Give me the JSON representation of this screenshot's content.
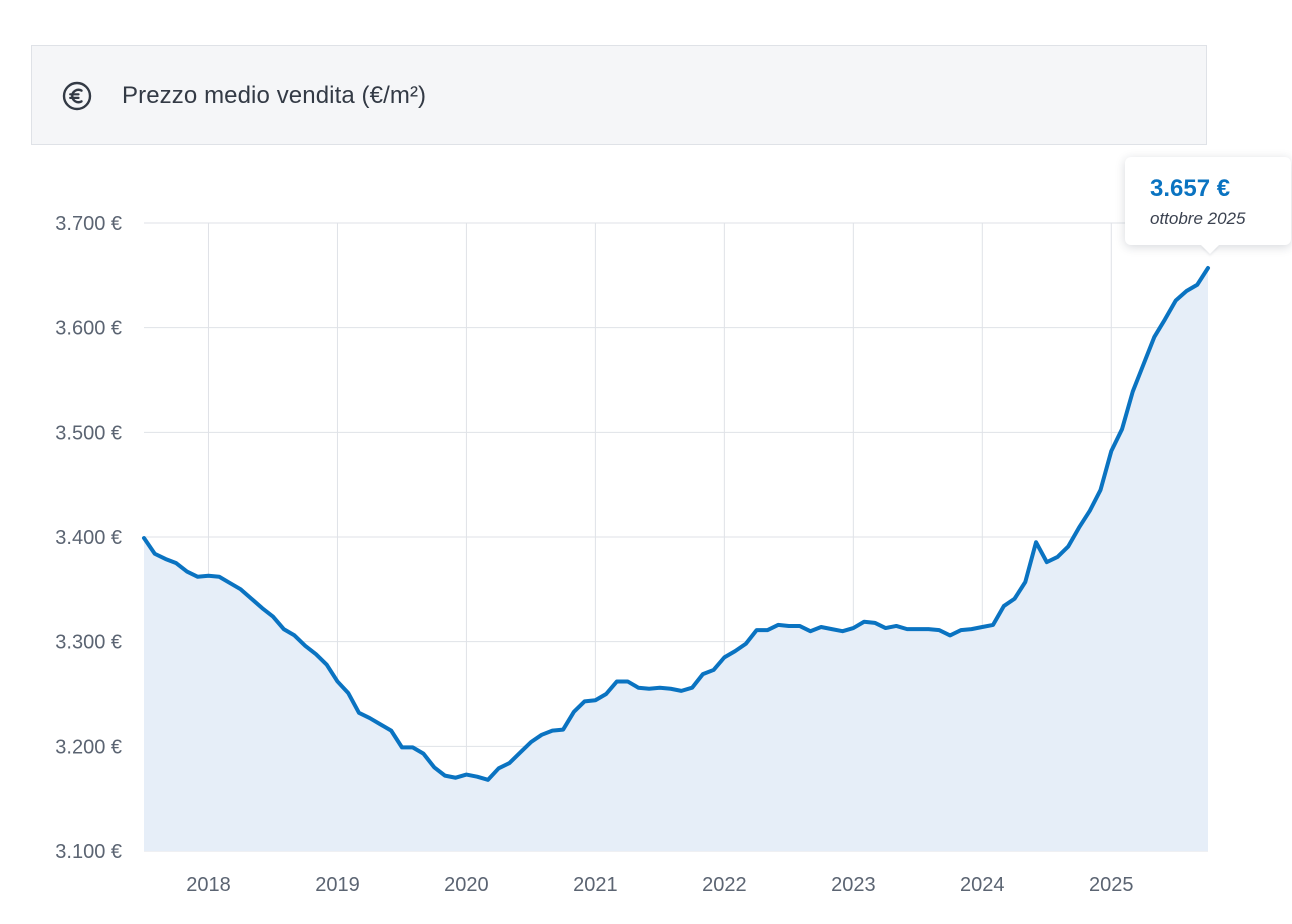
{
  "header": {
    "title": "Prezzo medio vendita (€/m²)",
    "icon": "euro-icon"
  },
  "tooltip": {
    "value": "3.657 €",
    "date": "ottobre 2025"
  },
  "colors": {
    "line": "#0a73c1",
    "area": "#e6eef8",
    "grid": "#dfe2e7",
    "tooltip_value": "#0a73c1"
  },
  "chart_data": {
    "type": "area",
    "title": "Prezzo medio vendita (€/m²)",
    "xlabel": "",
    "ylabel": "",
    "ylim": [
      3100,
      3700
    ],
    "xlim": [
      "2017-07",
      "2025-10"
    ],
    "grid": true,
    "y_ticks": [
      3100,
      3200,
      3300,
      3400,
      3500,
      3600,
      3700
    ],
    "y_tick_labels": [
      "3.100 €",
      "3.200 €",
      "3.300 €",
      "3.400 €",
      "3.500 €",
      "3.600 €",
      "3.700 €"
    ],
    "x_ticks": [
      "2018-01",
      "2019-01",
      "2020-01",
      "2021-01",
      "2022-01",
      "2023-01",
      "2024-01",
      "2025-01"
    ],
    "x_tick_labels": [
      "2018",
      "2019",
      "2020",
      "2021",
      "2022",
      "2023",
      "2024",
      "2025"
    ],
    "series": [
      {
        "x": [
          "2017-07",
          "2017-08",
          "2017-09",
          "2017-10",
          "2017-11",
          "2017-12",
          "2018-01",
          "2018-02",
          "2018-03",
          "2018-04",
          "2018-05",
          "2018-06",
          "2018-07",
          "2018-08",
          "2018-09",
          "2018-10",
          "2018-11",
          "2018-12",
          "2019-01",
          "2019-02",
          "2019-03",
          "2019-04",
          "2019-05",
          "2019-06",
          "2019-07",
          "2019-08",
          "2019-09",
          "2019-10",
          "2019-11",
          "2019-12",
          "2020-01",
          "2020-02",
          "2020-03",
          "2020-04",
          "2020-05",
          "2020-06",
          "2020-07",
          "2020-08",
          "2020-09",
          "2020-10",
          "2020-11",
          "2020-12",
          "2021-01",
          "2021-02",
          "2021-03",
          "2021-04",
          "2021-05",
          "2021-06",
          "2021-07",
          "2021-08",
          "2021-09",
          "2021-10",
          "2021-11",
          "2021-12",
          "2022-01",
          "2022-02",
          "2022-03",
          "2022-04",
          "2022-05",
          "2022-06",
          "2022-07",
          "2022-08",
          "2022-09",
          "2022-10",
          "2022-11",
          "2022-12",
          "2023-01",
          "2023-02",
          "2023-03",
          "2023-04",
          "2023-05",
          "2023-06",
          "2023-07",
          "2023-08",
          "2023-09",
          "2023-10",
          "2023-11",
          "2023-12",
          "2024-01",
          "2024-02",
          "2024-03",
          "2024-04",
          "2024-05",
          "2024-06",
          "2024-07",
          "2024-08",
          "2024-09",
          "2024-10",
          "2024-11",
          "2024-12",
          "2025-01",
          "2025-02",
          "2025-03",
          "2025-04",
          "2025-05",
          "2025-06",
          "2025-07",
          "2025-08",
          "2025-09",
          "2025-10"
        ],
        "values": [
          3399,
          3384,
          3379,
          3375,
          3367,
          3362,
          3363,
          3362,
          3356,
          3350,
          3341,
          3332,
          3324,
          3312,
          3306,
          3296,
          3288,
          3278,
          3262,
          3251,
          3232,
          3227,
          3221,
          3215,
          3199,
          3199,
          3193,
          3180,
          3172,
          3170,
          3173,
          3171,
          3168,
          3179,
          3184,
          3194,
          3204,
          3211,
          3215,
          3216,
          3233,
          3243,
          3244,
          3250,
          3262,
          3262,
          3256,
          3255,
          3256,
          3255,
          3253,
          3256,
          3269,
          3273,
          3285,
          3291,
          3298,
          3311,
          3311,
          3316,
          3315,
          3315,
          3310,
          3314,
          3312,
          3310,
          3313,
          3319,
          3318,
          3313,
          3315,
          3312,
          3312,
          3312,
          3311,
          3306,
          3311,
          3312,
          3314,
          3316,
          3334,
          3341,
          3357,
          3395,
          3376,
          3381,
          3391,
          3409,
          3425,
          3445,
          3482,
          3503,
          3539,
          3565,
          3591,
          3608,
          3626,
          3635,
          3641,
          3657
        ]
      }
    ]
  }
}
